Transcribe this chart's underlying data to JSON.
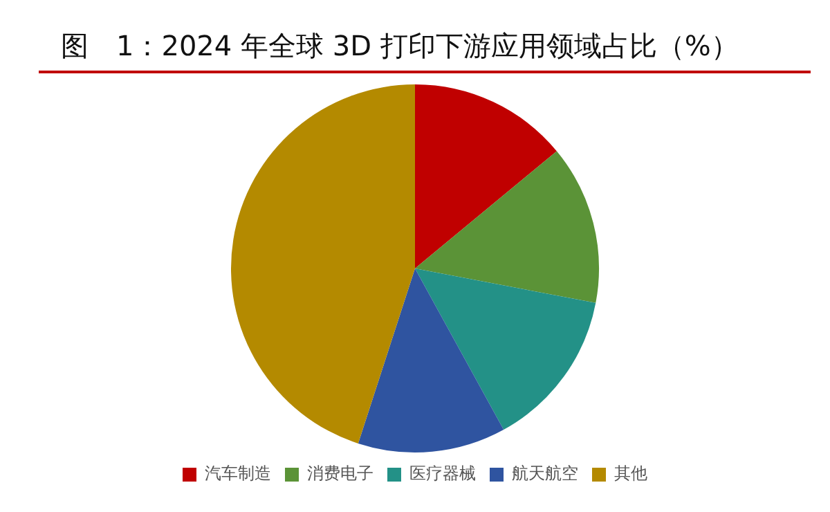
{
  "chart_data": {
    "type": "pie",
    "title": "图　1：2024 年全球 3D 打印下游应用领域占比（%）",
    "categories": [
      "汽车制造",
      "消费电子",
      "医疗器械",
      "航天航空",
      "其他"
    ],
    "values": [
      14,
      14,
      14,
      13,
      45
    ],
    "colors": [
      "#c00000",
      "#5b9337",
      "#239187",
      "#2f54a0",
      "#b48a00"
    ],
    "legend": "bottom"
  }
}
